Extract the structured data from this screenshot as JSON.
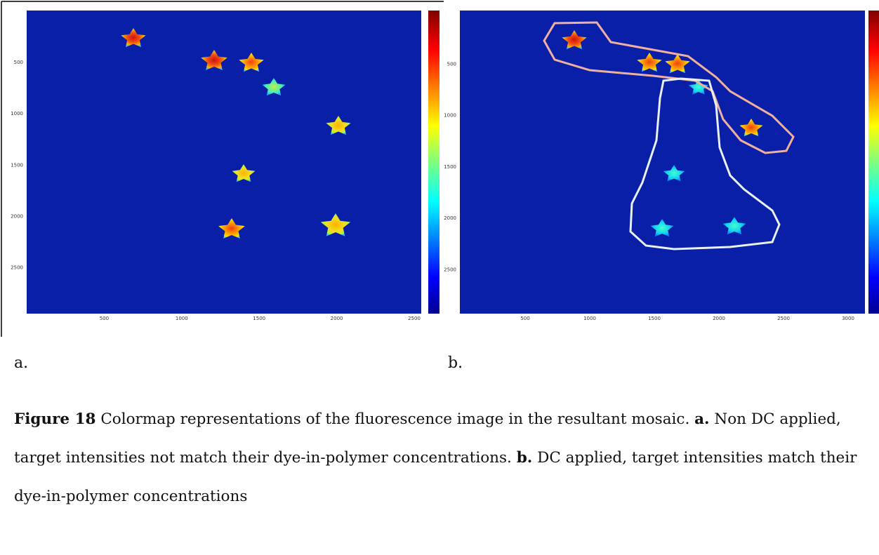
{
  "figure": {
    "panels": [
      {
        "label": "a.",
        "xticks": [
          500,
          1000,
          1500,
          2000,
          2500
        ],
        "yticks": [
          500,
          1000,
          1500,
          2000,
          2500
        ]
      },
      {
        "label": "b.",
        "xticks": [
          500,
          1000,
          1500,
          2000,
          2500,
          3000
        ],
        "yticks": [
          500,
          1000,
          1500,
          2000,
          2500
        ]
      }
    ],
    "caption": {
      "number": "Figure 18",
      "text": " Colormap representations of the fluorescence image in the resultant mosaic. ",
      "part_a_label": "a.",
      "part_a_text": " Non DC applied, target intensities not match their dye-in-polymer concentrations. ",
      "part_b_label": "b.",
      "part_b_text": " DC applied, target intensities match their dye-in-polymer concentrations"
    }
  }
}
